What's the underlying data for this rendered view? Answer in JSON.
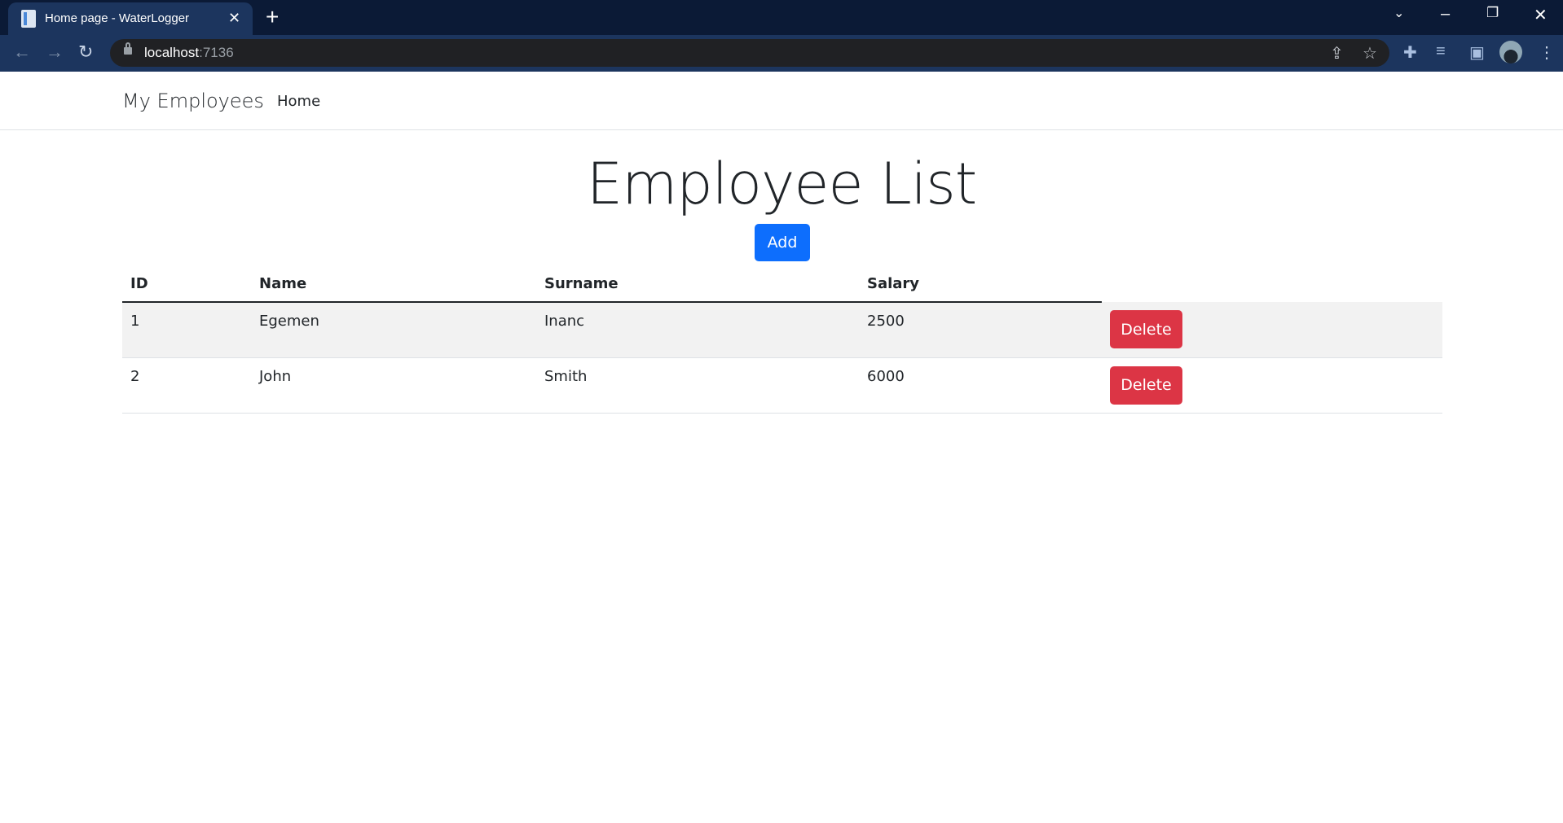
{
  "browser": {
    "tab_title": "Home page - WaterLogger",
    "url_host": "localhost",
    "url_port": ":7136"
  },
  "navbar": {
    "brand": "My Employees",
    "links": [
      {
        "label": "Home"
      }
    ]
  },
  "main": {
    "title": "Employee List",
    "add_label": "Add",
    "columns": [
      "ID",
      "Name",
      "Surname",
      "Salary",
      ""
    ],
    "rows": [
      {
        "id": "1",
        "name": "Egemen",
        "surname": "Inanc",
        "salary": "2500",
        "action": "Delete"
      },
      {
        "id": "2",
        "name": "John",
        "surname": "Smith",
        "salary": "6000",
        "action": "Delete"
      }
    ]
  },
  "colors": {
    "primary": "#0d6efd",
    "danger": "#dc3545",
    "chrome_dark": "#0b1a36",
    "chrome_toolbar": "#1c355e"
  }
}
